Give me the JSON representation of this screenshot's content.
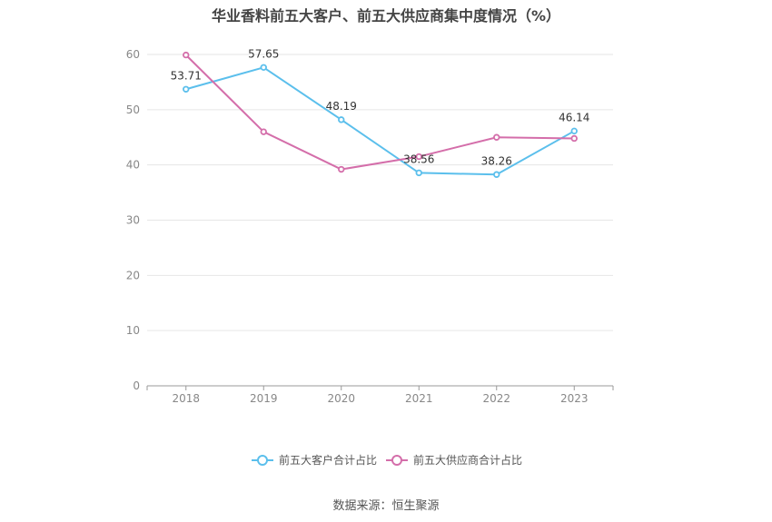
{
  "title": "华业香料前五大客户、前五大供应商集中度情况（%）",
  "source": "数据来源：恒生聚源",
  "colors": {
    "customers": "#5bbfec",
    "suppliers": "#d46eaa",
    "grid": "#e6e6e6",
    "axis": "#999999"
  },
  "chart_data": {
    "type": "line",
    "title": "华业香料前五大客户、前五大供应商集中度情况（%）",
    "xlabel": "",
    "ylabel": "",
    "categories": [
      "2018",
      "2019",
      "2020",
      "2021",
      "2022",
      "2023"
    ],
    "ylim": [
      0,
      60
    ],
    "yticks": [
      0,
      10,
      20,
      30,
      40,
      50,
      60
    ],
    "grid": true,
    "legend_position": "bottom",
    "series": [
      {
        "name": "前五大客户合计占比",
        "values": [
          53.71,
          57.65,
          48.19,
          38.56,
          38.26,
          46.14
        ],
        "labels": [
          "53.71",
          "57.65",
          "48.19",
          "38.56",
          "38.26",
          "46.14"
        ]
      },
      {
        "name": "前五大供应商合计占比",
        "values": [
          59.9,
          46.0,
          39.2,
          41.5,
          45.0,
          44.8
        ]
      }
    ]
  }
}
